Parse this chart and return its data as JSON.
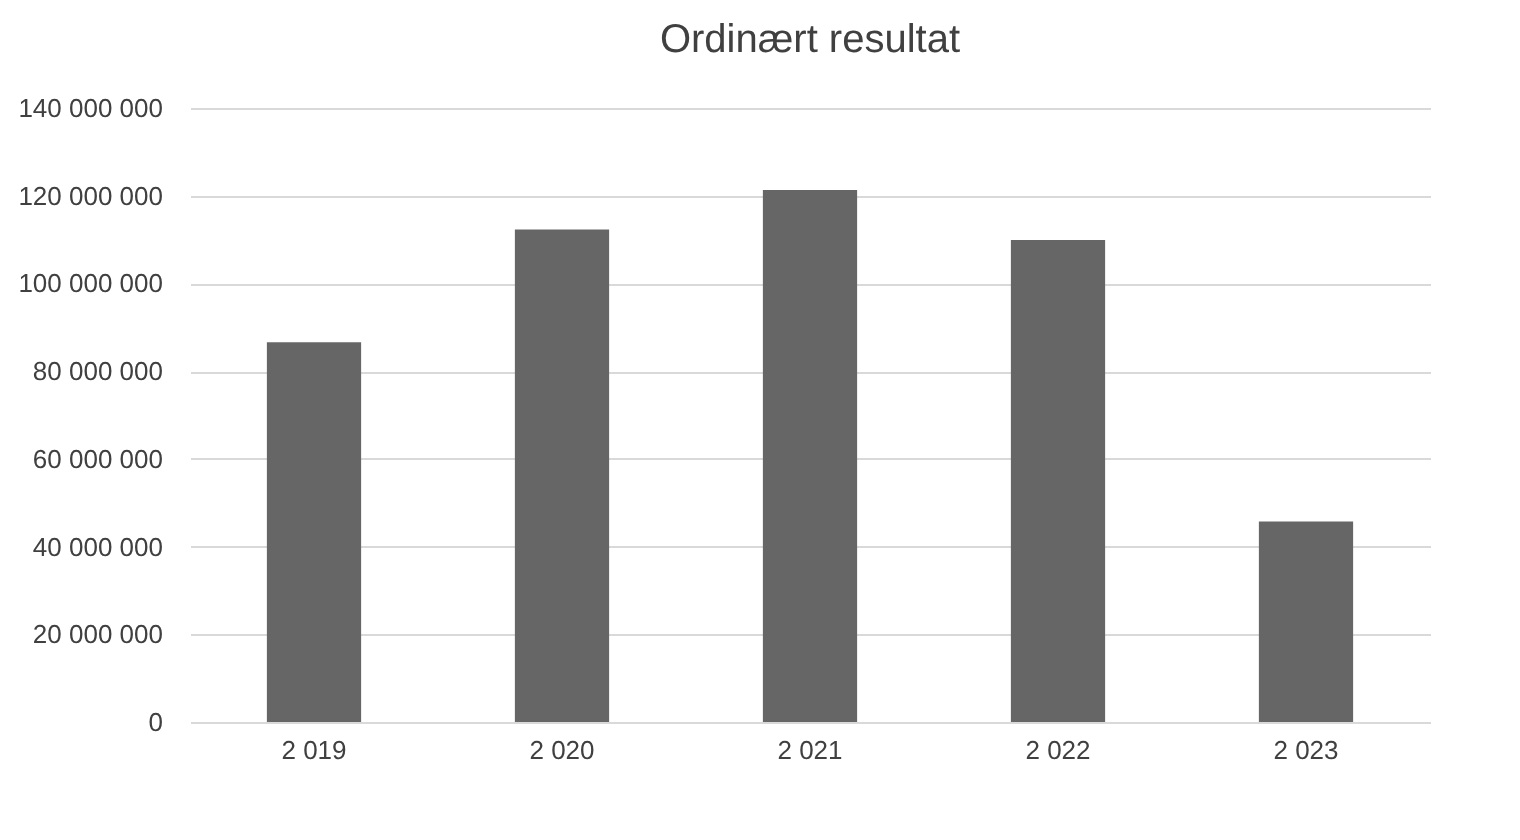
{
  "chart_data": {
    "type": "bar",
    "title": "Ordinært resultat",
    "categories": [
      "2 019",
      "2 020",
      "2 021",
      "2 022",
      "2 023"
    ],
    "values": [
      86600000,
      112300000,
      121300000,
      109900000,
      45700000
    ],
    "color": "#666666",
    "ylim": [
      0,
      140000000
    ],
    "yticks": [
      {
        "value": 0,
        "label": "0"
      },
      {
        "value": 20000000,
        "label": "20 000 000"
      },
      {
        "value": 40000000,
        "label": "40 000 000"
      },
      {
        "value": 60000000,
        "label": "60 000 000"
      },
      {
        "value": 80000000,
        "label": "80 000 000"
      },
      {
        "value": 100000000,
        "label": "100 000 000"
      },
      {
        "value": 120000000,
        "label": "120 000 000"
      },
      {
        "value": 140000000,
        "label": "140 000 000"
      }
    ],
    "grid": "y"
  }
}
